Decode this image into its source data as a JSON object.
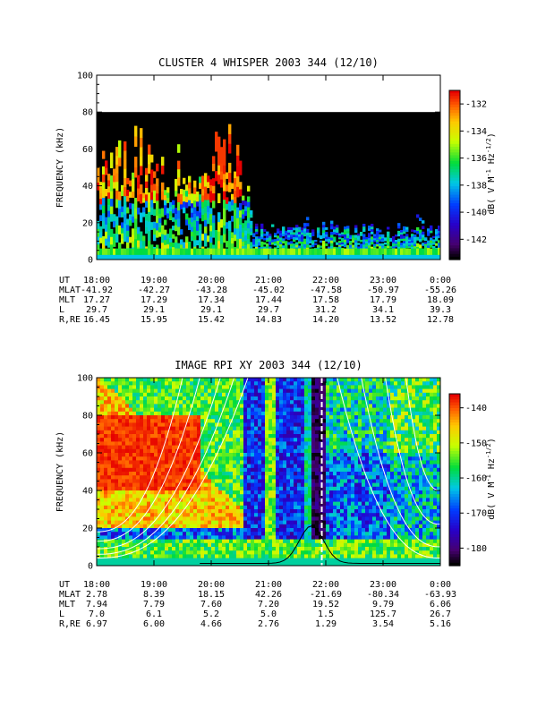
{
  "chart_data": [
    {
      "type": "heatmap",
      "title": "CLUSTER 4 WHISPER 2003 344 (12/10)",
      "ylabel": "FREQUENCY (kHz)",
      "ylim": [
        0,
        100
      ],
      "yticks": [
        "0",
        "20",
        "40",
        "60",
        "80",
        "100"
      ],
      "data_ceiling_khz": 80,
      "colorbar": {
        "label": "dB( V M⁻¹ Hz⁻¹ᐟ²)",
        "label_text": "dB( V M",
        "label_sup1": "-1",
        "label_mid": " Hz",
        "label_sup2": "-1/2",
        "label_end": ")",
        "range": [
          -143.5,
          -131
        ],
        "ticks": [
          "-132",
          "-134",
          "-136",
          "-138",
          "-140",
          "-142"
        ]
      },
      "ephemeris": {
        "row_labels": [
          "UT",
          "MLAT",
          "MLT",
          "L",
          "R,RE"
        ],
        "columns": [
          [
            "18:00",
            "-41.92",
            "17.27",
            "29.7",
            "16.45"
          ],
          [
            "19:00",
            "-42.27",
            "17.29",
            "29.1",
            "15.95"
          ],
          [
            "20:00",
            "-43.28",
            "17.34",
            "29.1",
            "15.42"
          ],
          [
            "21:00",
            "-45.02",
            "17.44",
            "29.7",
            "14.83"
          ],
          [
            "22:00",
            "-47.58",
            "17.58",
            "31.2",
            "14.20"
          ],
          [
            "23:00",
            "-50.97",
            "17.79",
            "34.1",
            "13.52"
          ],
          [
            "0:00",
            "-55.26",
            "18.09",
            "39.3",
            "12.78"
          ]
        ]
      }
    },
    {
      "type": "heatmap",
      "title": "IMAGE RPI XY 2003 344 (12/10)",
      "ylabel": "FREQUENCY (kHz)",
      "ylim": [
        0,
        100
      ],
      "yticks": [
        "0",
        "20",
        "40",
        "60",
        "80",
        "100"
      ],
      "colorbar": {
        "label_text": "dB( V M",
        "label_sup1": "-1",
        "label_mid": " Hz",
        "label_sup2": "-1/2",
        "label_end": ")",
        "range": [
          -185,
          -136
        ],
        "ticks": [
          "-140",
          "-150",
          "-160",
          "-170",
          "-180"
        ]
      },
      "overlays": {
        "white_curves": "plasma resonance lines",
        "black_curve_peak_khz": 20
      },
      "ephemeris": {
        "row_labels": [
          "UT",
          "MLAT",
          "MLT",
          "L",
          "R,RE"
        ],
        "columns": [
          [
            "18:00",
            "2.78",
            "7.94",
            "7.0",
            "6.97"
          ],
          [
            "19:00",
            "8.39",
            "7.79",
            "6.1",
            "6.00"
          ],
          [
            "20:00",
            "18.15",
            "7.60",
            "5.2",
            "4.66"
          ],
          [
            "21:00",
            "42.26",
            "7.20",
            "5.0",
            "2.76"
          ],
          [
            "22:00",
            "-21.69",
            "19.52",
            "1.5",
            "1.29"
          ],
          [
            "23:00",
            "-80.34",
            "9.79",
            "125.7",
            "3.54"
          ],
          [
            "0:00",
            "-63.93",
            "6.06",
            "26.7",
            "5.16"
          ]
        ]
      }
    }
  ]
}
